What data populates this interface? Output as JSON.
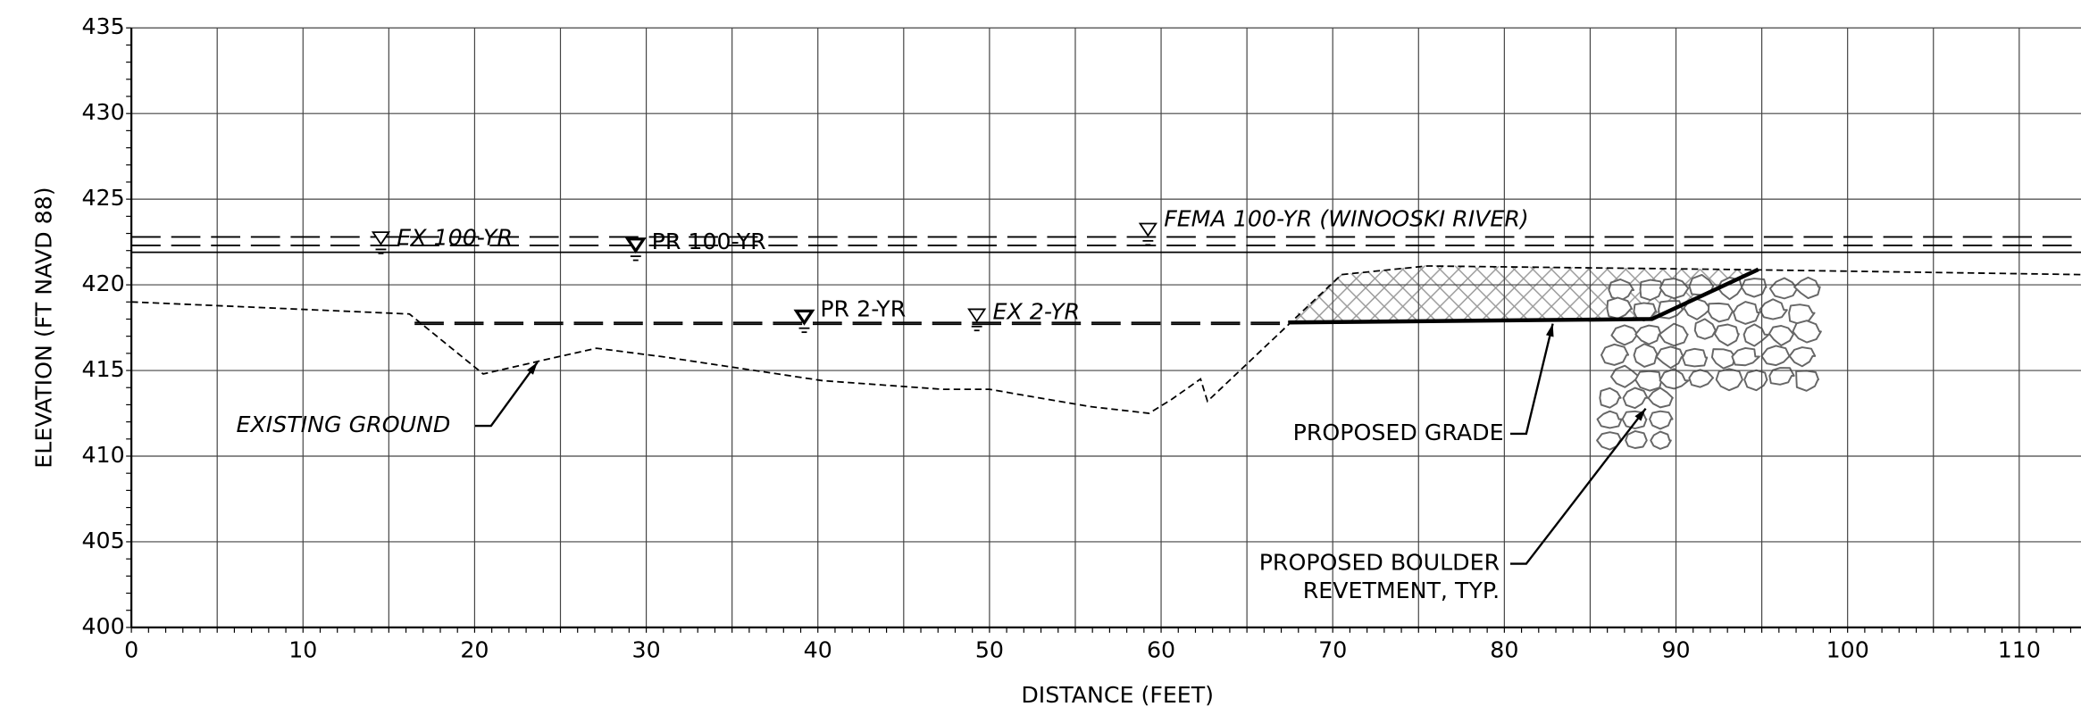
{
  "chart_data": {
    "type": "line",
    "xlabel": "DISTANCE (FEET)",
    "ylabel": "ELEVATION (FT NAVD 88)",
    "xlim": [
      0,
      113.6
    ],
    "ylim": [
      400,
      435
    ],
    "xticks": [
      0,
      10,
      20,
      30,
      40,
      50,
      60,
      70,
      80,
      90,
      100,
      110
    ],
    "yticks": [
      400,
      405,
      410,
      415,
      420,
      425,
      430,
      435
    ],
    "x_minor_grid": [
      5,
      15,
      25,
      35,
      45,
      55,
      65,
      75,
      85,
      95,
      105
    ],
    "minor_tick_step": 1,
    "grid": true,
    "series": [
      {
        "name": "FEMA 100-YR (WINOOSKI RIVER)",
        "color": "#000000",
        "style": "long-dash",
        "x": [
          0,
          113.6
        ],
        "values": [
          422.8,
          422.8
        ]
      },
      {
        "name": "EX 100-YR",
        "color": "#000000",
        "style": "long-dash",
        "x": [
          0,
          113.6
        ],
        "values": [
          422.3,
          422.3
        ]
      },
      {
        "name": "PR 100-YR",
        "color": "#000000",
        "style": "solid",
        "x": [
          0,
          113.6
        ],
        "values": [
          421.9,
          421.9
        ]
      },
      {
        "name": "EX 2-YR",
        "color": "#000000",
        "style": "long-dash",
        "x": [
          16.5,
          67.4
        ],
        "values": [
          417.8,
          417.8
        ]
      },
      {
        "name": "PR 2-YR",
        "color": "#000000",
        "style": "long-dash",
        "x": [
          16.5,
          67.4
        ],
        "values": [
          417.7,
          417.7
        ]
      },
      {
        "name": "EXISTING GROUND",
        "color": "#000000",
        "style": "short-dash",
        "x": [
          0,
          16.2,
          20.5,
          24,
          27.1,
          31,
          40.3,
          47.3,
          50,
          55.8,
          59.3,
          60.6,
          62.3,
          62.7,
          70.5,
          75.5,
          93,
          113.6
        ],
        "values": [
          419.0,
          418.3,
          414.8,
          415.6,
          416.3,
          415.8,
          414.4,
          413.9,
          413.9,
          412.9,
          412.5,
          413.3,
          414.5,
          413.2,
          420.6,
          421.1,
          420.9,
          420.6
        ]
      },
      {
        "name": "PROPOSED GRADE",
        "color": "#000000",
        "style": "thick",
        "x": [
          67.4,
          88.6,
          94.8
        ],
        "values": [
          417.8,
          418.0,
          420.9
        ]
      }
    ],
    "annotations": [
      "PROPOSED BOULDER",
      "REVETMENT, TYP."
    ]
  }
}
